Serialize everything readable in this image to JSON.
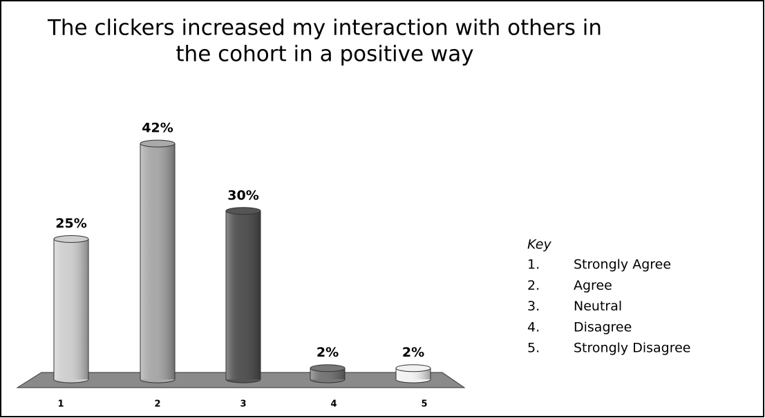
{
  "chart_data": {
    "type": "bar",
    "title": [
      "The clickers increased my interaction with others in",
      "the cohort in a positive way"
    ],
    "categories": [
      "1",
      "2",
      "3",
      "4",
      "5"
    ],
    "values": [
      25,
      42,
      30,
      2,
      2
    ],
    "value_labels": [
      "25%",
      "42%",
      "30%",
      "2%",
      "2%"
    ],
    "colors": [
      "#cfcfcf",
      "#a9a9a9",
      "#555555",
      "#777777",
      "#f2f2f2"
    ],
    "ylim": [
      0,
      50
    ],
    "key": {
      "title": "Key",
      "items": [
        {
          "number": "1.",
          "label": "Strongly Agree"
        },
        {
          "number": "2.",
          "label": "Agree"
        },
        {
          "number": "3.",
          "label": "Neutral"
        },
        {
          "number": "4.",
          "label": "Disagree"
        },
        {
          "number": "5.",
          "label": "Strongly Disagree"
        }
      ]
    }
  }
}
